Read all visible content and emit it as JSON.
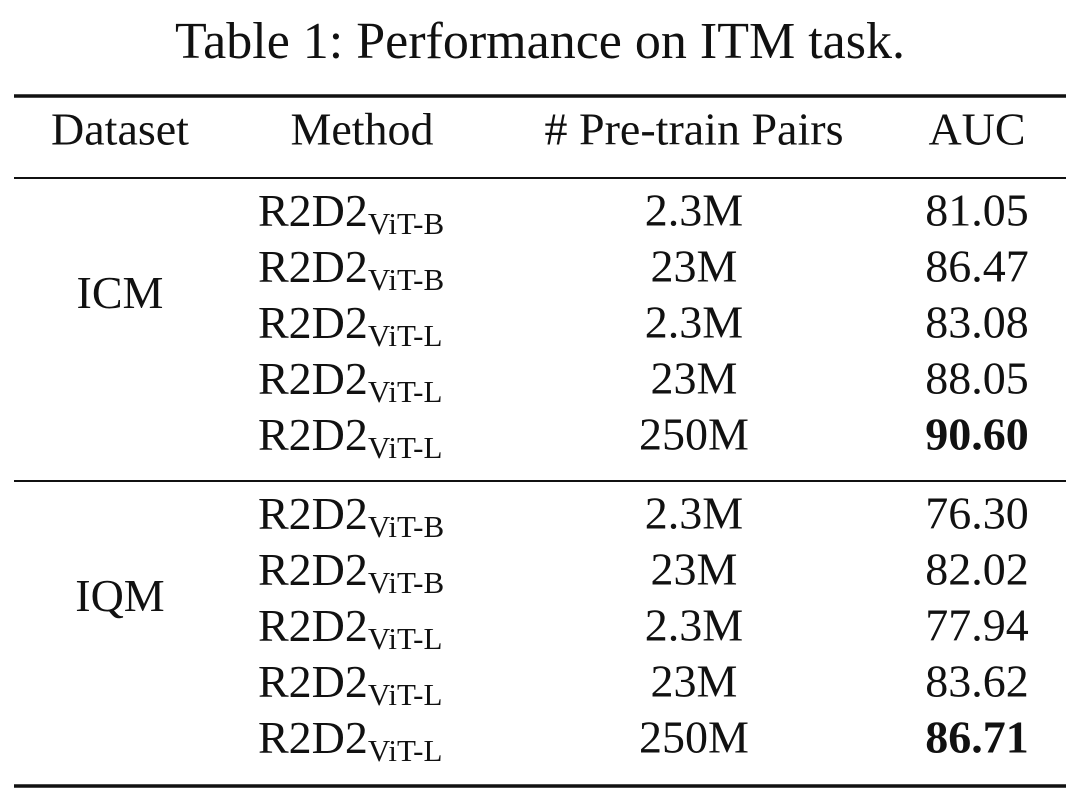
{
  "caption": "Table 1: Performance on ITM task.",
  "table": {
    "header": [
      "Dataset",
      "Method",
      "# Pre-train Pairs",
      "AUC"
    ],
    "groups": [
      {
        "dataset": "ICM",
        "rows": [
          {
            "method": "R2D2",
            "method_sub": "ViT-B",
            "pairs": "2.3M",
            "auc": "81.05",
            "auc_bold": false
          },
          {
            "method": "R2D2",
            "method_sub": "ViT-B",
            "pairs": "23M",
            "auc": "86.47",
            "auc_bold": false
          },
          {
            "method": "R2D2",
            "method_sub": "ViT-L",
            "pairs": "2.3M",
            "auc": "83.08",
            "auc_bold": false
          },
          {
            "method": "R2D2",
            "method_sub": "ViT-L",
            "pairs": "23M",
            "auc": "88.05",
            "auc_bold": false
          },
          {
            "method": "R2D2",
            "method_sub": "ViT-L",
            "pairs": "250M",
            "auc": "90.60",
            "auc_bold": true
          }
        ]
      },
      {
        "dataset": "IQM",
        "rows": [
          {
            "method": "R2D2",
            "method_sub": "ViT-B",
            "pairs": "2.3M",
            "auc": "76.30",
            "auc_bold": false
          },
          {
            "method": "R2D2",
            "method_sub": "ViT-B",
            "pairs": "23M",
            "auc": "82.02",
            "auc_bold": false
          },
          {
            "method": "R2D2",
            "method_sub": "ViT-L",
            "pairs": "2.3M",
            "auc": "77.94",
            "auc_bold": false
          },
          {
            "method": "R2D2",
            "method_sub": "ViT-L",
            "pairs": "23M",
            "auc": "83.62",
            "auc_bold": false
          },
          {
            "method": "R2D2",
            "method_sub": "ViT-L",
            "pairs": "250M",
            "auc": "86.71",
            "auc_bold": true
          }
        ]
      }
    ]
  }
}
